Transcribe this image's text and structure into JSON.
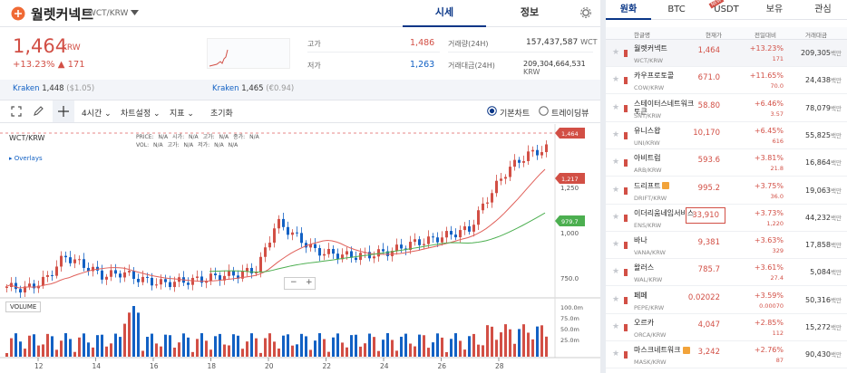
{
  "header": {
    "coin_name": "월렛커넥트",
    "pair": "WCT/KRW",
    "tab_quote": "시세",
    "tab_info": "정보"
  },
  "summary": {
    "price": "1,464",
    "currency": "KRW",
    "change_pct": "+13.23%",
    "change_amt": "▲ 171",
    "high_label": "고가",
    "high_value": "1,486",
    "low_label": "저가",
    "low_value": "1,263",
    "vol_label": "거래량(24H)",
    "vol_value": "157,437,587",
    "vol_unit": "WCT",
    "amt_label": "거래대금(24H)",
    "amt_value": "209,304,664,531",
    "amt_unit": "KRW"
  },
  "kraken": [
    {
      "label": "Kraken",
      "value": "1,448",
      "usd": "($1.05)"
    },
    {
      "label": "Kraken",
      "value": "1,465",
      "usd": "(€0.94)"
    }
  ],
  "toolbar": {
    "interval": "4시간",
    "chart_settings": "차트설정",
    "indicators": "지표",
    "reset": "초기화",
    "basic_chart": "기본차트",
    "tradingview": "트레이딩뷰"
  },
  "chart": {
    "symbol": "WCT/KRW",
    "ohlc_labels": [
      "PRICE:",
      "N/A",
      "시가:",
      "N/A",
      "고가:",
      "N/A",
      "종가:",
      "N/A"
    ],
    "ohlc_labels2": [
      "VOL:",
      "N/A",
      "고가:",
      "N/A",
      "저가:",
      "N/A",
      "N/A"
    ],
    "overlays": "Overlays",
    "volume_label": "VOLUME",
    "price_tag": "1,464",
    "ma1_tag": "1,217",
    "ma2_tag": "979.7",
    "y_ticks": [
      "1,250",
      "1,000",
      "750.0"
    ],
    "vol_ticks": [
      "100.0m",
      "75.0m",
      "50.0m",
      "25.0m"
    ],
    "x_ticks": [
      "12",
      "14",
      "16",
      "18",
      "20",
      "22",
      "24",
      "26",
      "28"
    ]
  },
  "chart_data": {
    "type": "candlestick",
    "x": [
      "12",
      "14",
      "16",
      "18",
      "20",
      "22",
      "24",
      "26",
      "28"
    ],
    "y_ticks": [
      750,
      1000,
      1250
    ],
    "last_price": 1464,
    "ma_short_last": 1217,
    "ma_long_last": 979.7
  },
  "market": {
    "tabs": [
      "원화",
      "BTC",
      "USDT",
      "보유",
      "관심"
    ],
    "new_badge": "NEW",
    "columns": [
      "한글명",
      "현재가",
      "전일대비",
      "거래대금"
    ],
    "rows": [
      {
        "name": "월렛커넥트",
        "code": "WCT/KRW",
        "price": "1,464",
        "pct": "+13.23%",
        "chg": "171",
        "vol": "209,305",
        "unit": "백만"
      },
      {
        "name": "카우프로토콜",
        "code": "COW/KRW",
        "price": "671.0",
        "pct": "+11.65%",
        "chg": "70.0",
        "vol": "24,438",
        "unit": "백만"
      },
      {
        "name": "스테이터스네트워크토큰",
        "code": "SNT/KRW",
        "price": "58.80",
        "pct": "+6.46%",
        "chg": "3.57",
        "vol": "78,079",
        "unit": "백만"
      },
      {
        "name": "유니스왑",
        "code": "UNI/KRW",
        "price": "10,170",
        "pct": "+6.45%",
        "chg": "616",
        "vol": "55,825",
        "unit": "백만"
      },
      {
        "name": "아비트럼",
        "code": "ARB/KRW",
        "price": "593.6",
        "pct": "+3.81%",
        "chg": "21.8",
        "vol": "16,864",
        "unit": "백만"
      },
      {
        "name": "드리프트",
        "code": "DRIFT/KRW",
        "price": "995.2",
        "pct": "+3.75%",
        "chg": "36.0",
        "vol": "19,063",
        "unit": "백만"
      },
      {
        "name": "이더리움네임서비스",
        "code": "ENS/KRW",
        "price": "33,910",
        "pct": "+3.73%",
        "chg": "1,220",
        "vol": "44,232",
        "unit": "백만"
      },
      {
        "name": "바나",
        "code": "VANA/KRW",
        "price": "9,381",
        "pct": "+3.63%",
        "chg": "329",
        "vol": "17,858",
        "unit": "백만"
      },
      {
        "name": "왈러스",
        "code": "WAL/KRW",
        "price": "785.7",
        "pct": "+3.61%",
        "chg": "27.4",
        "vol": "5,084",
        "unit": "백만"
      },
      {
        "name": "페페",
        "code": "PEPE/KRW",
        "price": "0.02022",
        "pct": "+3.59%",
        "chg": "0.00070",
        "vol": "50,316",
        "unit": "백만"
      },
      {
        "name": "오르카",
        "code": "ORCA/KRW",
        "price": "4,047",
        "pct": "+2.85%",
        "chg": "112",
        "vol": "15,272",
        "unit": "백만"
      },
      {
        "name": "마스크네트워크",
        "code": "MASK/KRW",
        "price": "3,242",
        "pct": "+2.76%",
        "chg": "87",
        "vol": "90,430",
        "unit": "백만"
      }
    ]
  }
}
